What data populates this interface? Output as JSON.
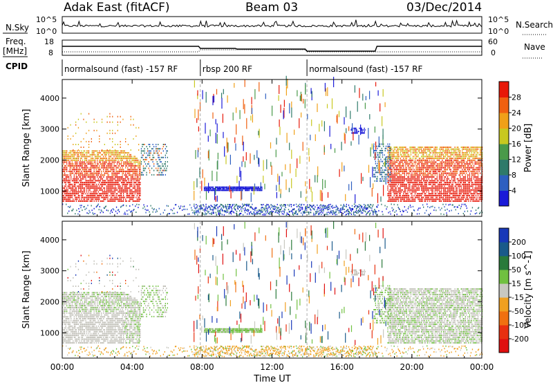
{
  "header": {
    "title": "Adak East (fitACF)",
    "beam": "Beam 03",
    "date": "03/Dec/2014"
  },
  "panels": {
    "nsky_label": "N.Sky",
    "nsearch_label": "N.Search",
    "freq_label_1": "Freq.",
    "freq_label_2": "[MHz]",
    "nave_label": "Nave",
    "cpid_label": "CPID",
    "nsky_ticks": [
      "10^5",
      "10^0"
    ],
    "nsearch_ticks": [
      "10^5",
      "10^0"
    ],
    "freq_ticks": [
      "18",
      "8"
    ],
    "nave_ticks": [
      "60",
      "0"
    ]
  },
  "cpid_segments": [
    {
      "label": "normalsound (fast) -157 RF",
      "start": 0,
      "end": 7.9
    },
    {
      "label": "rbsp 200 RF",
      "start": 7.9,
      "end": 14.0
    },
    {
      "label": "normalsound (fast) -157 RF",
      "start": 14.0,
      "end": 24
    }
  ],
  "colors": {
    "power_scale": [
      "#1a1ad8",
      "#2d5fc0",
      "#2f7a6a",
      "#4a9a4a",
      "#c8c820",
      "#f0a018",
      "#f06010",
      "#e81808"
    ],
    "velocity_scale": [
      "#1838b8",
      "#1a5a8a",
      "#2a7a3a",
      "#70c040",
      "#c8c8c0",
      "#f0a020",
      "#f07010",
      "#e83010",
      "#e01010"
    ],
    "ground_scatter": "#bebdb5"
  },
  "chart_data": [
    {
      "type": "heatmap",
      "panel": "power",
      "ylabel": "Slant Range [km]",
      "xlabel": "Time UT",
      "x_ticks": [
        "00:00",
        "04:00",
        "08:00",
        "12:00",
        "16:00",
        "20:00",
        "00:00"
      ],
      "y_ticks": [
        "1000",
        "2000",
        "3000",
        "4000"
      ],
      "xlim": [
        0,
        24
      ],
      "ylim": [
        180,
        4600
      ],
      "colorbar_label": "Power [dB]",
      "colorbar_ticks": [
        "4",
        "8",
        "12",
        "16",
        "20",
        "24",
        "28"
      ],
      "colorbar_range": [
        0,
        32
      ]
    },
    {
      "type": "heatmap",
      "panel": "velocity",
      "ylabel": "Slant Range [km]",
      "xlabel": "Time UT",
      "x_ticks": [
        "00:00",
        "04:00",
        "08:00",
        "12:00",
        "16:00",
        "20:00",
        "00:00"
      ],
      "y_ticks": [
        "1000",
        "2000",
        "3000",
        "4000"
      ],
      "xlim": [
        0,
        24
      ],
      "ylim": [
        180,
        4600
      ],
      "colorbar_label": "Velocity [m s^-1]",
      "colorbar_ticks": [
        "200",
        "100",
        "50",
        "15",
        "-15",
        "-50",
        "-100",
        "-200"
      ]
    }
  ]
}
